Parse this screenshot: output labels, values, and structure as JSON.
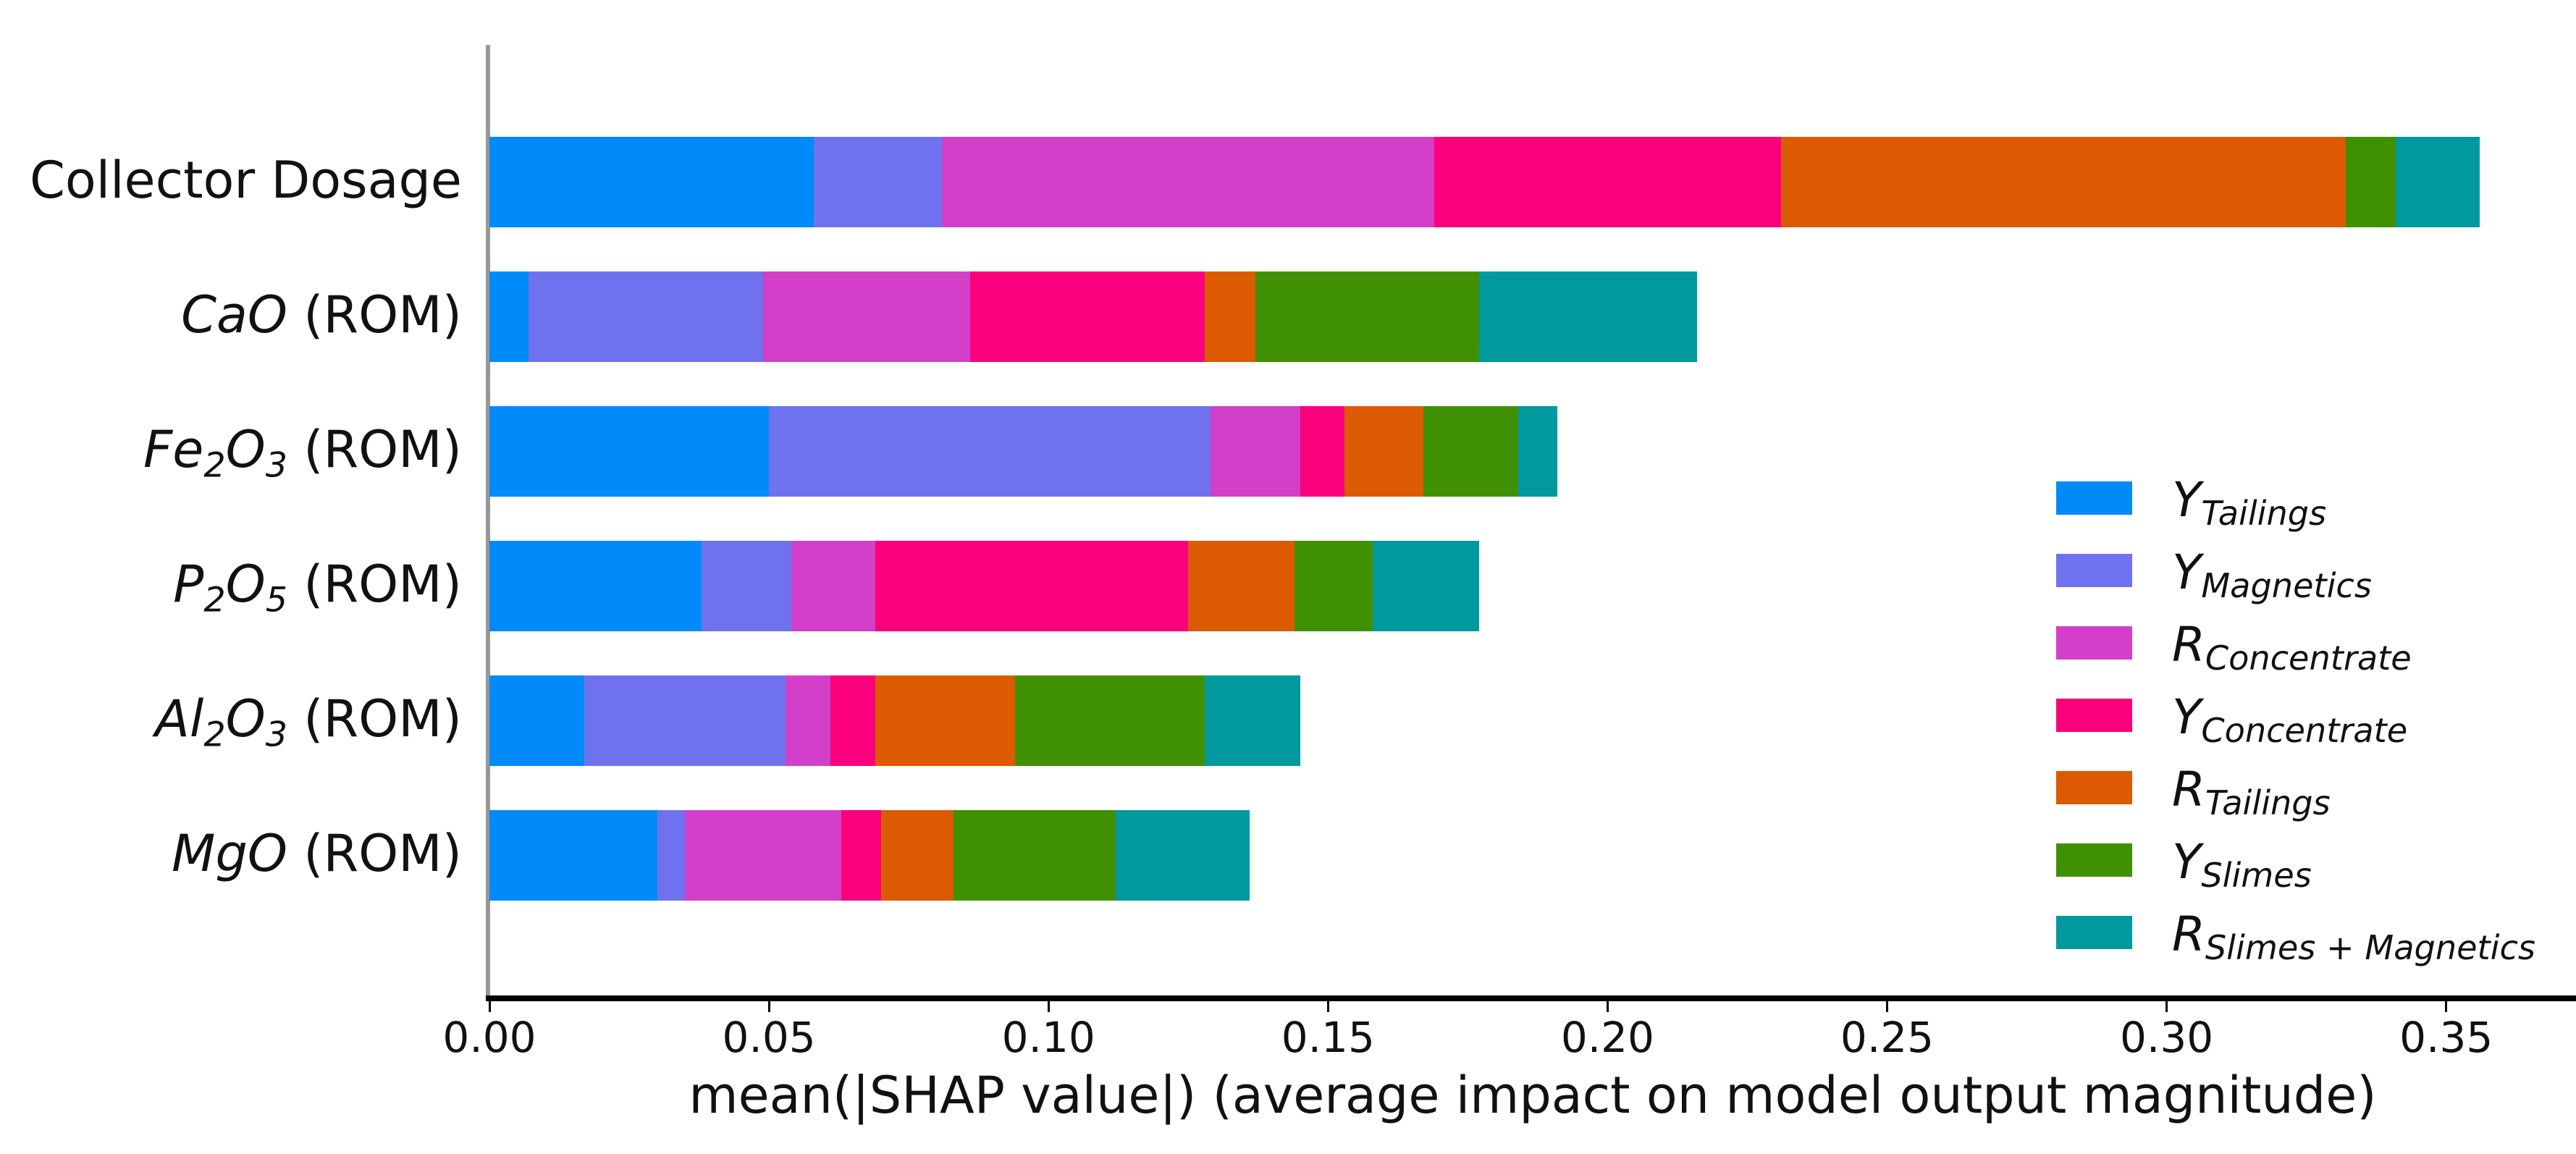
{
  "chart_data": {
    "type": "bar",
    "stacked": true,
    "orientation": "horizontal",
    "title": "",
    "xlabel": "mean(|SHAP value|) (average impact on model output magnitude)",
    "ylabel": "",
    "xlim": [
      0,
      0.373
    ],
    "grid": false,
    "legend_position": "center right",
    "xticks": [
      "0.00",
      "0.05",
      "0.10",
      "0.15",
      "0.20",
      "0.25",
      "0.30",
      "0.35"
    ],
    "xtick_values": [
      0.0,
      0.05,
      0.1,
      0.15,
      0.2,
      0.25,
      0.3,
      0.35
    ],
    "categories": [
      "Collector Dosage",
      "CaO (ROM)",
      "Fe2O3 (ROM)",
      "P2O5 (ROM)",
      "Al2O3 (ROM)",
      "MgO (ROM)"
    ],
    "category_tokens": [
      [
        {
          "t": "Collector Dosage"
        }
      ],
      [
        {
          "t": "CaO",
          "i": true
        },
        {
          "t": " (ROM)"
        }
      ],
      [
        {
          "t": "Fe",
          "i": true
        },
        {
          "t": "2",
          "i": true,
          "s": true
        },
        {
          "t": "O",
          "i": true
        },
        {
          "t": "3",
          "i": true,
          "s": true
        },
        {
          "t": " (ROM)"
        }
      ],
      [
        {
          "t": "P",
          "i": true
        },
        {
          "t": "2",
          "i": true,
          "s": true
        },
        {
          "t": "O",
          "i": true
        },
        {
          "t": "5",
          "i": true,
          "s": true
        },
        {
          "t": " (ROM)"
        }
      ],
      [
        {
          "t": "Al",
          "i": true
        },
        {
          "t": "2",
          "i": true,
          "s": true
        },
        {
          "t": "O",
          "i": true
        },
        {
          "t": "3",
          "i": true,
          "s": true
        },
        {
          "t": " (ROM)"
        }
      ],
      [
        {
          "t": "MgO",
          "i": true
        },
        {
          "t": " (ROM)"
        }
      ]
    ],
    "series": [
      {
        "name": "Y_Tailings",
        "color": "#008bf8",
        "tokens": [
          {
            "t": "Y",
            "i": true
          },
          {
            "t": "Tailings",
            "i": true,
            "s": true
          }
        ],
        "values": [
          0.058,
          0.007,
          0.05,
          0.038,
          0.017,
          0.03
        ]
      },
      {
        "name": "Y_Magnetics",
        "color": "#6f72ee",
        "tokens": [
          {
            "t": "Y",
            "i": true
          },
          {
            "t": "Magnetics",
            "i": true,
            "s": true
          }
        ],
        "values": [
          0.023,
          0.042,
          0.079,
          0.016,
          0.036,
          0.005
        ]
      },
      {
        "name": "R_Concentrate",
        "color": "#d33fc8",
        "tokens": [
          {
            "t": "R",
            "i": true
          },
          {
            "t": "Concentrate",
            "i": true,
            "s": true
          }
        ],
        "values": [
          0.088,
          0.037,
          0.016,
          0.015,
          0.008,
          0.028
        ]
      },
      {
        "name": "Y_Concentrate",
        "color": "#fb007c",
        "tokens": [
          {
            "t": "Y",
            "i": true
          },
          {
            "t": "Concentrate",
            "i": true,
            "s": true
          }
        ],
        "values": [
          0.062,
          0.042,
          0.008,
          0.056,
          0.008,
          0.007
        ]
      },
      {
        "name": "R_Tailings",
        "color": "#dc5a02",
        "tokens": [
          {
            "t": "R",
            "i": true
          },
          {
            "t": "Tailings",
            "i": true,
            "s": true
          }
        ],
        "values": [
          0.101,
          0.009,
          0.014,
          0.019,
          0.025,
          0.013
        ]
      },
      {
        "name": "Y_Slimes",
        "color": "#3f9103",
        "tokens": [
          {
            "t": "Y",
            "i": true
          },
          {
            "t": "Slimes",
            "i": true,
            "s": true
          }
        ],
        "values": [
          0.009,
          0.04,
          0.017,
          0.014,
          0.034,
          0.029
        ]
      },
      {
        "name": "R_Slimes+Magnetics",
        "color": "#00999e",
        "tokens": [
          {
            "t": "R",
            "i": true
          },
          {
            "t": "Slimes + Magnetics",
            "i": true,
            "s": true
          }
        ],
        "values": [
          0.015,
          0.039,
          0.007,
          0.019,
          0.017,
          0.024
        ]
      }
    ],
    "bar_totals": [
      0.356,
      0.216,
      0.191,
      0.177,
      0.145,
      0.136
    ]
  },
  "axis_style": {
    "left_spine_color": "#979797",
    "bottom_spine_color": "#000000",
    "text_color": "#111111",
    "background": "#ffffff"
  }
}
